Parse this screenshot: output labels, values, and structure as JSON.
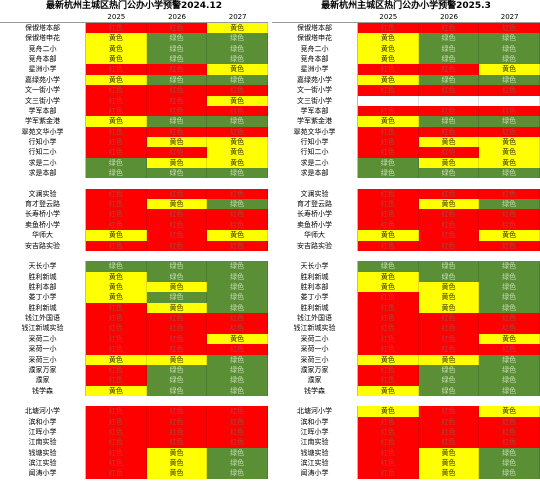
{
  "colors": {
    "红色": "#ff0000",
    "绿色": "#5a8f35",
    "黄色": "#ffff00"
  },
  "panels": [
    {
      "title": "最新杭州主城区热门公办小学预警2024.12",
      "years": [
        "2025",
        "2026",
        "2027"
      ],
      "rows": [
        {
          "name": "保俶塔本部",
          "cells": [
            "红色",
            "红色",
            "黄色"
          ]
        },
        {
          "name": "保俶塔申花",
          "cells": [
            "黄色",
            "绿色",
            "绿色"
          ]
        },
        {
          "name": "竞舟二小",
          "cells": [
            "黄色",
            "绿色",
            "绿色"
          ]
        },
        {
          "name": "竞舟本部",
          "cells": [
            "黄色",
            "绿色",
            "绿色"
          ]
        },
        {
          "name": "星洲小学",
          "cells": [
            "红色",
            "红色",
            "黄色"
          ]
        },
        {
          "name": "嘉绿苑小学",
          "cells": [
            "黄色",
            "绿色",
            "绿色"
          ]
        },
        {
          "name": "文一街小学",
          "cells": [
            "红色",
            "红色",
            "红色"
          ]
        },
        {
          "name": "文三街小学",
          "cells": [
            "红色",
            "红色",
            "黄色"
          ]
        },
        {
          "name": "学军本部",
          "cells": [
            "红色",
            "红色",
            "红色"
          ]
        },
        {
          "name": "学军紫金港",
          "cells": [
            "黄色",
            "绿色",
            "绿色"
          ]
        },
        {
          "name": "翠苑文华小学",
          "cells": [
            "红色",
            "红色",
            "红色"
          ]
        },
        {
          "name": "行知小学",
          "cells": [
            "红色",
            "黄色",
            "黄色"
          ]
        },
        {
          "name": "行知二小",
          "cells": [
            "红色",
            "红色",
            "黄色"
          ]
        },
        {
          "name": "求是二小",
          "cells": [
            "绿色",
            "黄色",
            "黄色"
          ]
        },
        {
          "name": "求是本部",
          "cells": [
            "绿色",
            "绿色",
            "绿色"
          ]
        },
        null,
        {
          "name": "文澜实验",
          "cells": [
            "红色",
            "红色",
            "红色"
          ]
        },
        {
          "name": "育才登云路",
          "cells": [
            "红色",
            "黄色",
            "绿色"
          ]
        },
        {
          "name": "长寿桥小学",
          "cells": [
            "红色",
            "红色",
            "红色"
          ]
        },
        {
          "name": "卖鱼桥小学",
          "cells": [
            "红色",
            "红色",
            "红色"
          ]
        },
        {
          "name": "华师大",
          "cells": [
            "黄色",
            "红色",
            "黄色"
          ]
        },
        {
          "name": "安吉路实验",
          "cells": [
            "红色",
            "红色",
            "红色"
          ]
        },
        null,
        {
          "name": "天长小学",
          "cells": [
            "绿色",
            "绿色",
            "绿色"
          ]
        },
        {
          "name": "胜利新城",
          "cells": [
            "黄色",
            "绿色",
            "绿色"
          ]
        },
        {
          "name": "胜利本部",
          "cells": [
            "黄色",
            "黄色",
            "绿色"
          ]
        },
        {
          "name": "娄丁小学",
          "cells": [
            "黄色",
            "绿色",
            "绿色"
          ]
        },
        {
          "name": "胜利新城",
          "cells": [
            "红色",
            "黄色",
            "绿色"
          ]
        },
        {
          "name": "钱江外国语",
          "cells": [
            "红色",
            "红色",
            "红色"
          ]
        },
        {
          "name": "钱江新城实验",
          "cells": [
            "红色",
            "红色",
            "红色"
          ]
        },
        {
          "name": "采荷二小",
          "cells": [
            "红色",
            "红色",
            "黄色"
          ]
        },
        {
          "name": "采荷一小",
          "cells": [
            "红色",
            "红色",
            "红色"
          ]
        },
        {
          "name": "采荷三小",
          "cells": [
            "黄色",
            "黄色",
            "绿色"
          ]
        },
        {
          "name": "濮家万家",
          "cells": [
            "红色",
            "绿色",
            "绿色"
          ]
        },
        {
          "name": "濮家",
          "cells": [
            "红色",
            "绿色",
            "绿色"
          ]
        },
        {
          "name": "钱学森",
          "cells": [
            "黄色",
            "绿色",
            "绿色"
          ]
        },
        null,
        {
          "name": "北塘河小学",
          "cells": [
            "红色",
            "红色",
            "红色"
          ]
        },
        {
          "name": "滨和小学",
          "cells": [
            "红色",
            "红色",
            "红色"
          ]
        },
        {
          "name": "江晖小学",
          "cells": [
            "红色",
            "红色",
            "红色"
          ]
        },
        {
          "name": "江南实验",
          "cells": [
            "红色",
            "红色",
            "红色"
          ]
        },
        {
          "name": "钱塘实验",
          "cells": [
            "红色",
            "黄色",
            "绿色"
          ]
        },
        {
          "name": "滨江实验",
          "cells": [
            "红色",
            "黄色",
            "绿色"
          ]
        },
        {
          "name": "闻涛小学",
          "cells": [
            "红色",
            "黄色",
            "绿色"
          ]
        }
      ]
    },
    {
      "title": "最新杭州主城区热门公办小学预警2025.3",
      "years": [
        "2025",
        "2026",
        "2027"
      ],
      "rows": [
        {
          "name": "保俶塔本部",
          "cells": [
            "红色",
            "红色",
            "红色"
          ]
        },
        {
          "name": "保俶塔申花",
          "cells": [
            "黄色",
            "绿色",
            "绿色"
          ]
        },
        {
          "name": "竞舟二小",
          "cells": [
            "黄色",
            "绿色",
            "绿色"
          ]
        },
        {
          "name": "竞舟本部",
          "cells": [
            "黄色",
            "绿色",
            "绿色"
          ]
        },
        {
          "name": "星洲小学",
          "cells": [
            "红色",
            "红色",
            "黄色"
          ]
        },
        {
          "name": "嘉绿苑小学",
          "cells": [
            "黄色",
            "绿色",
            "绿色"
          ]
        },
        {
          "name": "文一街小学",
          "cells": [
            "红色",
            "红色",
            "红色"
          ]
        },
        {
          "name": "文三街小学",
          "cells": [
            "",
            "",
            ""
          ]
        },
        {
          "name": "学军本部",
          "cells": [
            "红色",
            "红色",
            "红色"
          ]
        },
        {
          "name": "学军紫金港",
          "cells": [
            "黄色",
            "绿色",
            "绿色"
          ]
        },
        {
          "name": "翠苑文华小学",
          "cells": [
            "红色",
            "红色",
            "红色"
          ]
        },
        {
          "name": "行知小学",
          "cells": [
            "红色",
            "黄色",
            "黄色"
          ]
        },
        {
          "name": "行知二小",
          "cells": [
            "红色",
            "红色",
            "黄色"
          ]
        },
        {
          "name": "求是二小",
          "cells": [
            "绿色",
            "黄色",
            "黄色"
          ]
        },
        {
          "name": "求是本部",
          "cells": [
            "绿色",
            "绿色",
            "绿色"
          ]
        },
        null,
        {
          "name": "文澜实验",
          "cells": [
            "红色",
            "红色",
            "红色"
          ]
        },
        {
          "name": "育才登云路",
          "cells": [
            "红色",
            "黄色",
            "绿色"
          ]
        },
        {
          "name": "长寿桥小学",
          "cells": [
            "红色",
            "红色",
            "红色"
          ]
        },
        {
          "name": "卖鱼桥小学",
          "cells": [
            "红色",
            "红色",
            "红色"
          ]
        },
        {
          "name": "华师大",
          "cells": [
            "黄色",
            "红色",
            "黄色"
          ]
        },
        {
          "name": "安吉路实验",
          "cells": [
            "红色",
            "红色",
            "红色"
          ]
        },
        null,
        {
          "name": "天长小学",
          "cells": [
            "绿色",
            "绿色",
            "绿色"
          ]
        },
        {
          "name": "胜利新城",
          "cells": [
            "黄色",
            "绿色",
            "绿色"
          ]
        },
        {
          "name": "胜利本部",
          "cells": [
            "黄色",
            "黄色",
            "绿色"
          ]
        },
        {
          "name": "娄丁小学",
          "cells": [
            "红色",
            "黄色",
            "绿色"
          ]
        },
        {
          "name": "胜利新城",
          "cells": [
            "红色",
            "黄色",
            "绿色"
          ]
        },
        {
          "name": "钱江外国语",
          "cells": [
            "红色",
            "红色",
            "红色"
          ]
        },
        {
          "name": "钱江新城实验",
          "cells": [
            "红色",
            "红色",
            "红色"
          ]
        },
        {
          "name": "采荷二小",
          "cells": [
            "红色",
            "红色",
            "黄色"
          ]
        },
        {
          "name": "采荷一小",
          "cells": [
            "红色",
            "红色",
            "红色"
          ]
        },
        {
          "name": "采荷三小",
          "cells": [
            "黄色",
            "黄色",
            "绿色"
          ]
        },
        {
          "name": "濮家万家",
          "cells": [
            "红色",
            "绿色",
            "绿色"
          ]
        },
        {
          "name": "濮家",
          "cells": [
            "红色",
            "绿色",
            "绿色"
          ]
        },
        {
          "name": "钱学森",
          "cells": [
            "黄色",
            "绿色",
            "绿色"
          ]
        },
        null,
        {
          "name": "北塘河小学",
          "cells": [
            "黄色",
            "红色",
            "黄色"
          ]
        },
        {
          "name": "滨和小学",
          "cells": [
            "红色",
            "红色",
            "红色"
          ]
        },
        {
          "name": "江晖小学",
          "cells": [
            "红色",
            "红色",
            "红色"
          ]
        },
        {
          "name": "江南实验",
          "cells": [
            "红色",
            "红色",
            "红色"
          ]
        },
        {
          "name": "钱塘实验",
          "cells": [
            "红色",
            "黄色",
            "绿色"
          ]
        },
        {
          "name": "滨江实验",
          "cells": [
            "红色",
            "黄色",
            "绿色"
          ]
        },
        {
          "name": "闻涛小学",
          "cells": [
            "红色",
            "黄色",
            "绿色"
          ]
        }
      ]
    }
  ]
}
